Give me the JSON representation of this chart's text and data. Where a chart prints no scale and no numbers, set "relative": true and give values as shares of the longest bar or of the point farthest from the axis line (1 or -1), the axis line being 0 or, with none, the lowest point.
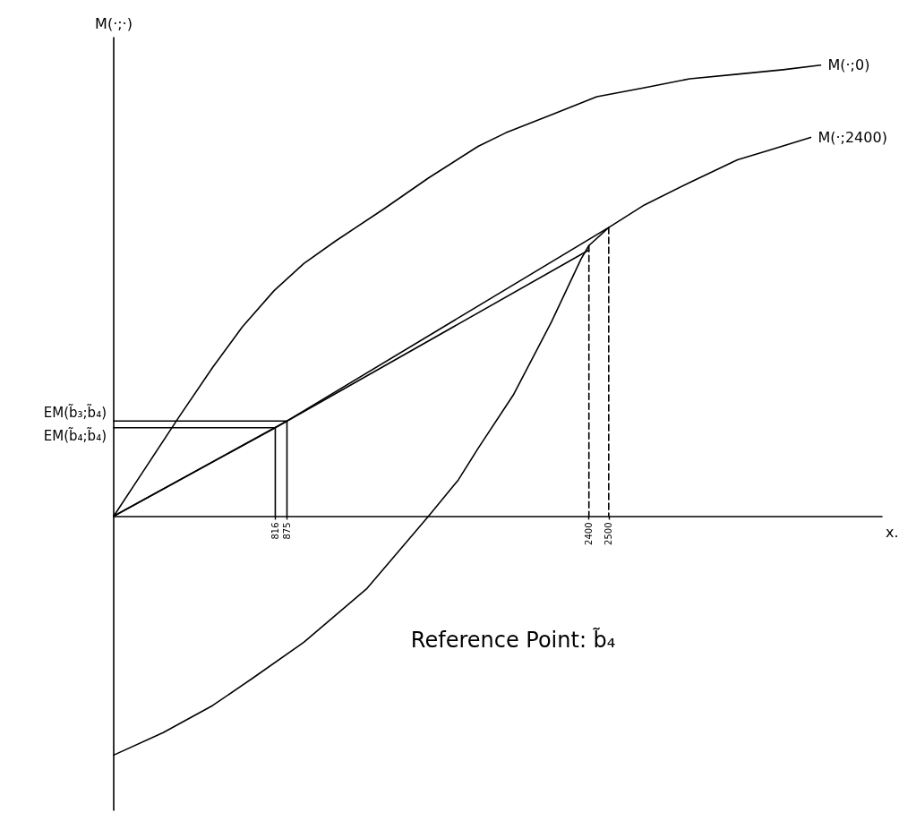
{
  "chart_data": {
    "type": "line",
    "relative": true,
    "xlabel": "x.",
    "ylabel": "M(·;·)",
    "xlim": [
      0,
      3880
    ],
    "xticks": [
      816,
      875,
      2400,
      2500
    ],
    "series": [
      {
        "name": "M(·;0)",
        "color": "#000000",
        "x": [
          0,
          150,
          330,
          500,
          650,
          810,
          960,
          1120,
          1360,
          1590,
          1840,
          1980,
          2210,
          2440,
          2680,
          2910,
          3150,
          3380,
          3570
        ],
        "values": [
          0,
          0.1,
          0.22,
          0.33,
          0.42,
          0.5,
          0.56,
          0.61,
          0.68,
          0.75,
          0.82,
          0.85,
          0.89,
          0.93,
          0.95,
          0.97,
          0.98,
          0.99,
          1
        ]
      },
      {
        "name": "M(·;2400)",
        "color": "#000000",
        "x": [
          0,
          250,
          500,
          700,
          960,
          1280,
          1590,
          1740,
          1840,
          2020,
          2210,
          2360,
          2400,
          2500,
          2680,
          2910,
          3150,
          3300,
          3520
        ],
        "values": [
          -0.53,
          -0.48,
          -0.42,
          -0.36,
          -0.28,
          -0.16,
          0,
          0.08,
          0.15,
          0.27,
          0.43,
          0.57,
          0.6,
          0.64,
          0.69,
          0.74,
          0.79,
          0.81,
          0.84
        ]
      },
      {
        "color": "#000000",
        "x": [
          0,
          875,
          2500
        ],
        "values": [
          0,
          0.211,
          0.64
        ]
      },
      {
        "color": "#000000",
        "x": [
          0,
          816,
          2400
        ],
        "values": [
          0,
          0.196,
          0.59
        ]
      },
      {
        "color": "#000000",
        "x": [
          0,
          875,
          875
        ],
        "values": [
          0.211,
          0.211,
          0
        ]
      },
      {
        "color": "#000000",
        "x": [
          0,
          816,
          816
        ],
        "values": [
          0.196,
          0.196,
          0
        ]
      },
      {
        "color": "#000000",
        "x": [
          2400,
          2400
        ],
        "values": [
          0.6,
          0
        ],
        "line_style": "dashed"
      },
      {
        "color": "#000000",
        "x": [
          2500,
          2500
        ],
        "values": [
          0.64,
          0
        ],
        "line_style": "dashed"
      }
    ],
    "annotations": [
      {
        "text": "EM(b̃₃;b̃₄)",
        "x": 0,
        "y": 0.211
      },
      {
        "text": "EM(b̃₄;b̃₄)",
        "x": 0,
        "y": 0.196
      },
      "Reference Point: b̃₄"
    ]
  }
}
